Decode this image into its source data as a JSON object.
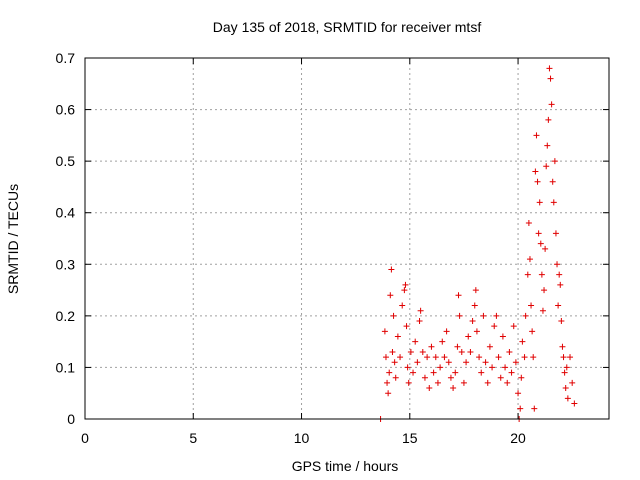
{
  "chart_data": {
    "type": "scatter",
    "title": "Day 135 of 2018, SRMTID for receiver mtsf",
    "xlabel": "GPS time / hours",
    "ylabel": "SRMTID / TECUs",
    "xlim": [
      0,
      24.2
    ],
    "ylim": [
      0,
      0.7
    ],
    "xticks": [
      0,
      5,
      10,
      15,
      20
    ],
    "xtick_labels": [
      "0",
      "5",
      "10",
      "15",
      "20"
    ],
    "yticks": [
      0,
      0.1,
      0.2,
      0.3,
      0.4,
      0.5,
      0.6,
      0.7
    ],
    "ytick_labels": [
      "0",
      "0.1",
      "0.2",
      "0.3",
      "0.4",
      "0.5",
      "0.6",
      "0.7"
    ],
    "grid": true,
    "marker": "plus",
    "series": [
      {
        "name": "SRMTID",
        "color": "#e00000",
        "points": [
          [
            13.65,
            0.0
          ],
          [
            13.85,
            0.17
          ],
          [
            13.9,
            0.12
          ],
          [
            13.95,
            0.07
          ],
          [
            14.0,
            0.05
          ],
          [
            14.05,
            0.09
          ],
          [
            14.1,
            0.24
          ],
          [
            14.15,
            0.29
          ],
          [
            14.2,
            0.13
          ],
          [
            14.25,
            0.2
          ],
          [
            14.3,
            0.11
          ],
          [
            14.35,
            0.08
          ],
          [
            14.45,
            0.16
          ],
          [
            14.55,
            0.12
          ],
          [
            14.65,
            0.22
          ],
          [
            14.75,
            0.25
          ],
          [
            14.8,
            0.26
          ],
          [
            14.85,
            0.18
          ],
          [
            14.9,
            0.1
          ],
          [
            14.95,
            0.07
          ],
          [
            15.05,
            0.13
          ],
          [
            15.15,
            0.09
          ],
          [
            15.25,
            0.15
          ],
          [
            15.35,
            0.11
          ],
          [
            15.45,
            0.19
          ],
          [
            15.5,
            0.21
          ],
          [
            15.6,
            0.13
          ],
          [
            15.7,
            0.08
          ],
          [
            15.8,
            0.12
          ],
          [
            15.9,
            0.06
          ],
          [
            16.0,
            0.14
          ],
          [
            16.1,
            0.09
          ],
          [
            16.2,
            0.12
          ],
          [
            16.3,
            0.07
          ],
          [
            16.4,
            0.1
          ],
          [
            16.5,
            0.15
          ],
          [
            16.6,
            0.12
          ],
          [
            16.7,
            0.17
          ],
          [
            16.8,
            0.11
          ],
          [
            16.9,
            0.08
          ],
          [
            17.0,
            0.06
          ],
          [
            17.1,
            0.09
          ],
          [
            17.2,
            0.14
          ],
          [
            17.25,
            0.24
          ],
          [
            17.3,
            0.2
          ],
          [
            17.4,
            0.13
          ],
          [
            17.5,
            0.07
          ],
          [
            17.6,
            0.11
          ],
          [
            17.7,
            0.16
          ],
          [
            17.8,
            0.13
          ],
          [
            17.9,
            0.19
          ],
          [
            18.0,
            0.22
          ],
          [
            18.05,
            0.25
          ],
          [
            18.1,
            0.17
          ],
          [
            18.2,
            0.12
          ],
          [
            18.3,
            0.09
          ],
          [
            18.4,
            0.2
          ],
          [
            18.5,
            0.11
          ],
          [
            18.6,
            0.07
          ],
          [
            18.7,
            0.14
          ],
          [
            18.8,
            0.1
          ],
          [
            18.9,
            0.18
          ],
          [
            19.0,
            0.2
          ],
          [
            19.1,
            0.12
          ],
          [
            19.2,
            0.08
          ],
          [
            19.3,
            0.16
          ],
          [
            19.4,
            0.1
          ],
          [
            19.5,
            0.07
          ],
          [
            19.6,
            0.13
          ],
          [
            19.7,
            0.09
          ],
          [
            19.8,
            0.18
          ],
          [
            19.9,
            0.11
          ],
          [
            20.0,
            0.05
          ],
          [
            20.05,
            0.0
          ],
          [
            20.1,
            0.02
          ],
          [
            20.15,
            0.08
          ],
          [
            20.2,
            0.15
          ],
          [
            20.3,
            0.12
          ],
          [
            20.35,
            0.2
          ],
          [
            20.45,
            0.28
          ],
          [
            20.5,
            0.38
          ],
          [
            20.55,
            0.31
          ],
          [
            20.6,
            0.22
          ],
          [
            20.65,
            0.17
          ],
          [
            20.7,
            0.12
          ],
          [
            20.75,
            0.02
          ],
          [
            20.8,
            0.48
          ],
          [
            20.85,
            0.55
          ],
          [
            20.9,
            0.46
          ],
          [
            20.95,
            0.36
          ],
          [
            21.0,
            0.42
          ],
          [
            21.05,
            0.34
          ],
          [
            21.1,
            0.28
          ],
          [
            21.15,
            0.21
          ],
          [
            21.2,
            0.25
          ],
          [
            21.25,
            0.33
          ],
          [
            21.3,
            0.49
          ],
          [
            21.35,
            0.53
          ],
          [
            21.4,
            0.58
          ],
          [
            21.45,
            0.68
          ],
          [
            21.5,
            0.66
          ],
          [
            21.55,
            0.61
          ],
          [
            21.6,
            0.46
          ],
          [
            21.65,
            0.42
          ],
          [
            21.7,
            0.5
          ],
          [
            21.75,
            0.36
          ],
          [
            21.8,
            0.3
          ],
          [
            21.85,
            0.22
          ],
          [
            21.9,
            0.28
          ],
          [
            21.95,
            0.26
          ],
          [
            22.0,
            0.19
          ],
          [
            22.05,
            0.14
          ],
          [
            22.1,
            0.12
          ],
          [
            22.15,
            0.09
          ],
          [
            22.2,
            0.06
          ],
          [
            22.25,
            0.1
          ],
          [
            22.3,
            0.04
          ],
          [
            22.4,
            0.12
          ],
          [
            22.5,
            0.07
          ],
          [
            22.6,
            0.03
          ]
        ]
      }
    ]
  }
}
